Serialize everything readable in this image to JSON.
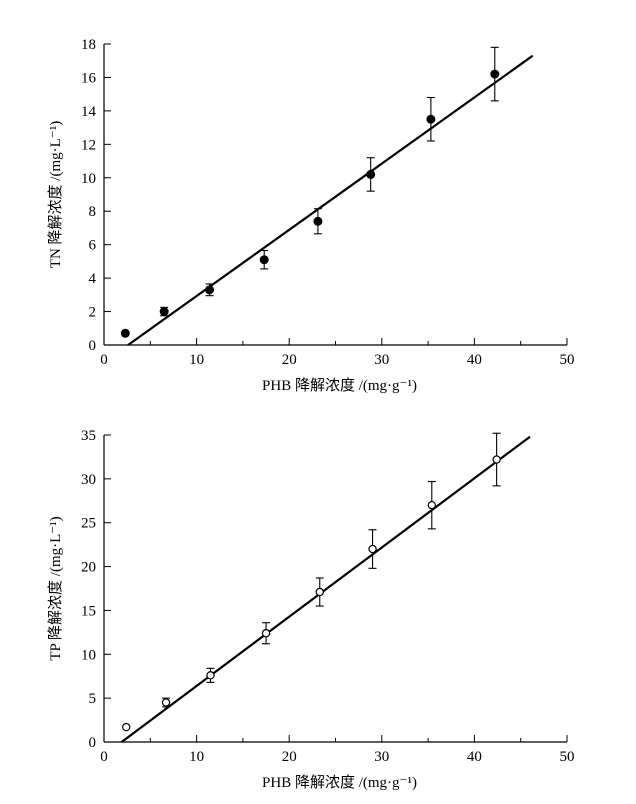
{
  "chart_data": [
    {
      "type": "scatter",
      "title": "",
      "xlabel": "PHB 降解浓度 /(mg·g⁻¹)",
      "ylabel": "TN 降解浓度 /(mg·L⁻¹)",
      "xlim": [
        0,
        50
      ],
      "ylim": [
        0,
        18
      ],
      "xticks": [
        "0",
        "10",
        "20",
        "30",
        "40",
        "50"
      ],
      "yticks": [
        "0",
        "2",
        "4",
        "6",
        "8",
        "10",
        "12",
        "14",
        "16",
        "18"
      ],
      "marker": "filled",
      "points": [
        {
          "x": 2.3,
          "y": 0.7,
          "err": 0.0
        },
        {
          "x": 6.5,
          "y": 2.0,
          "err": 0.25
        },
        {
          "x": 11.4,
          "y": 3.3,
          "err": 0.35
        },
        {
          "x": 17.3,
          "y": 5.1,
          "err": 0.55
        },
        {
          "x": 23.1,
          "y": 7.4,
          "err": 0.75
        },
        {
          "x": 28.8,
          "y": 10.2,
          "err": 1.0
        },
        {
          "x": 35.3,
          "y": 13.5,
          "err": 1.3
        },
        {
          "x": 42.2,
          "y": 16.2,
          "err": 1.6
        }
      ],
      "fit_line": {
        "x": [
          2.6,
          46.3
        ],
        "y": [
          0,
          17.3
        ]
      }
    },
    {
      "type": "scatter",
      "title": "",
      "xlabel": "PHB 降解浓度 /(mg·g⁻¹)",
      "ylabel": "TP 降解浓度 /(mg·L⁻¹)",
      "xlim": [
        0,
        50
      ],
      "ylim": [
        0,
        35
      ],
      "xticks": [
        "0",
        "10",
        "20",
        "30",
        "40",
        "50"
      ],
      "yticks": [
        "0",
        "5",
        "10",
        "15",
        "20",
        "25",
        "30",
        "35"
      ],
      "marker": "open",
      "points": [
        {
          "x": 2.4,
          "y": 1.7,
          "err": 0.0
        },
        {
          "x": 6.7,
          "y": 4.5,
          "err": 0.5
        },
        {
          "x": 11.5,
          "y": 7.6,
          "err": 0.8
        },
        {
          "x": 17.5,
          "y": 12.4,
          "err": 1.2
        },
        {
          "x": 23.3,
          "y": 17.1,
          "err": 1.6
        },
        {
          "x": 29.0,
          "y": 22.0,
          "err": 2.2
        },
        {
          "x": 35.4,
          "y": 27.0,
          "err": 2.7
        },
        {
          "x": 42.4,
          "y": 32.2,
          "err": 3.0
        }
      ],
      "fit_line": {
        "x": [
          1.9,
          46.0
        ],
        "y": [
          0,
          34.8
        ]
      }
    }
  ]
}
